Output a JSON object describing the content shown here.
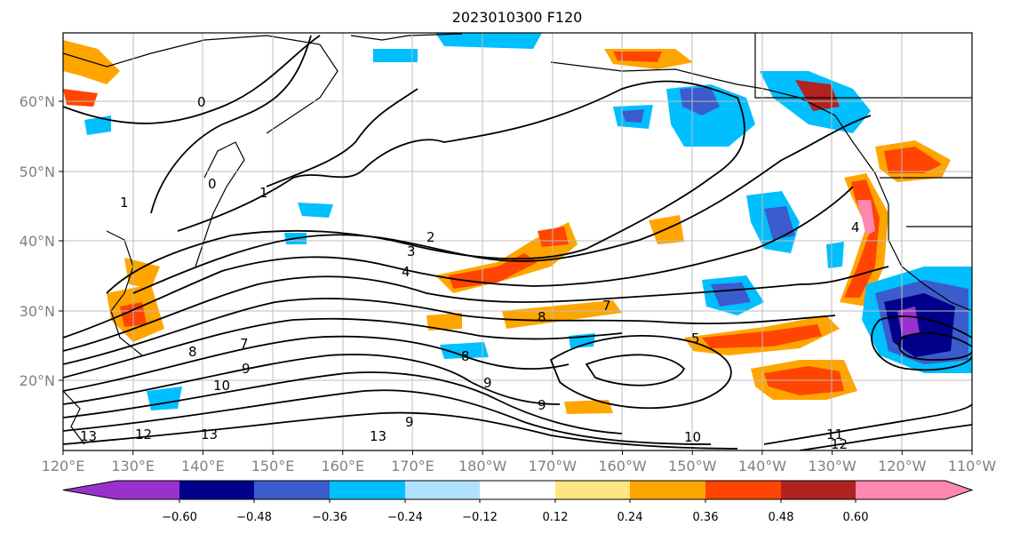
{
  "title": "2023010300 F120",
  "map": {
    "lat_ticks": [
      "60°N",
      "50°N",
      "40°N",
      "30°N",
      "20°N"
    ],
    "lon_ticks": [
      "120°E",
      "130°E",
      "140°E",
      "150°E",
      "160°E",
      "170°E",
      "180°W",
      "170°W",
      "160°W",
      "150°W",
      "140°W",
      "130°W",
      "120°W",
      "110°W"
    ],
    "contour_labels": [
      "0",
      "0",
      "1",
      "1",
      "2",
      "3",
      "4",
      "4",
      "5",
      "7",
      "7",
      "8",
      "8",
      "8",
      "9",
      "9",
      "9",
      "9",
      "10",
      "10",
      "11",
      "12",
      "12",
      "13",
      "13",
      "13"
    ]
  },
  "colorbar": {
    "tick_labels": [
      "−0.60",
      "−0.48",
      "−0.36",
      "−0.24",
      "−0.12",
      "0.12",
      "0.24",
      "0.36",
      "0.48",
      "0.60"
    ],
    "colors": [
      "#9932cc",
      "#00008b",
      "#3a5ccc",
      "#00bfff",
      "#b0e2ff",
      "#ffffff",
      "#ffe680",
      "#ffa500",
      "#ff4500",
      "#b22222",
      "#ff88b0"
    ]
  }
}
